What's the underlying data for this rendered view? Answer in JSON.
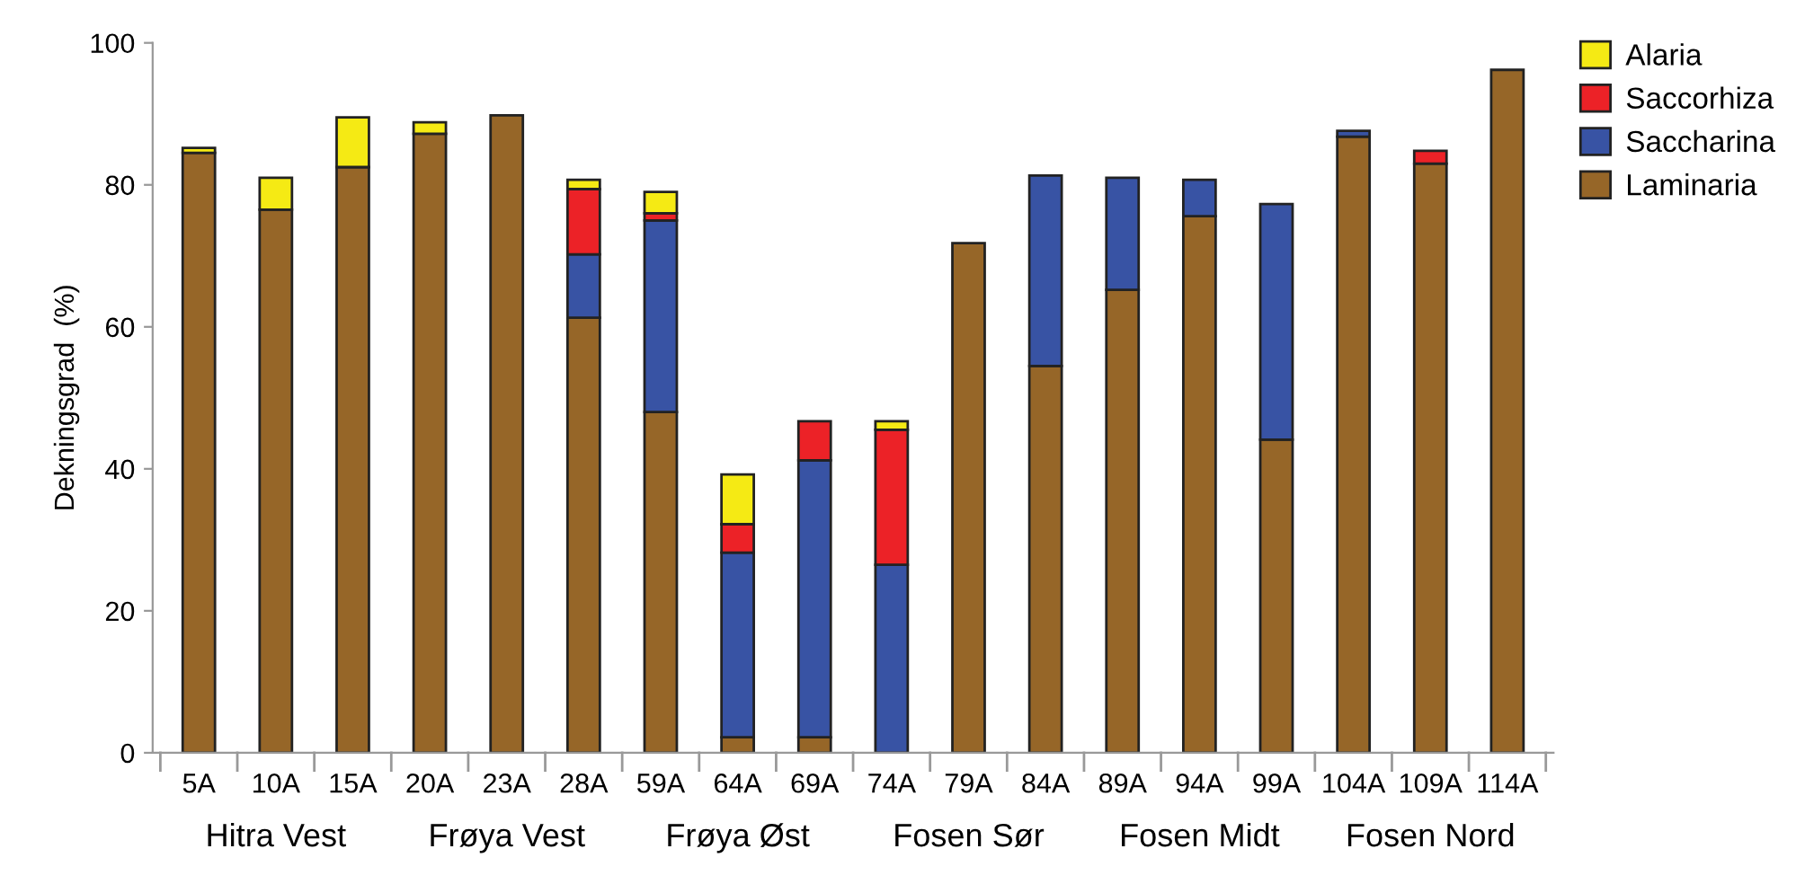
{
  "chart_data": {
    "type": "bar",
    "stacked": true,
    "ylabel": "Dekningsgrad  (%)",
    "categories": [
      "5A",
      "10A",
      "15A",
      "20A",
      "23A",
      "28A",
      "59A",
      "64A",
      "69A",
      "74A",
      "79A",
      "84A",
      "89A",
      "94A",
      "99A",
      "104A",
      "109A",
      "114A"
    ],
    "series": [
      {
        "name": "Laminaria",
        "color": "#966628",
        "values": [
          84.5,
          76.5,
          82.5,
          87.2,
          89.8,
          61.3,
          48,
          2.2,
          2.2,
          null,
          71.8,
          54.5,
          65.2,
          75.6,
          44.1,
          86.8,
          83,
          96.2
        ]
      },
      {
        "name": "Saccharina",
        "color": "#3853a4",
        "values": [
          null,
          null,
          null,
          null,
          null,
          8.9,
          27,
          26,
          39,
          26.5,
          null,
          26.8,
          15.8,
          5.1,
          33.2,
          0.8,
          null,
          null
        ]
      },
      {
        "name": "Saccorhiza",
        "color": "#ec2227",
        "values": [
          null,
          null,
          null,
          null,
          null,
          9.2,
          1,
          4,
          5.5,
          19,
          null,
          null,
          null,
          null,
          null,
          null,
          1.8,
          null
        ]
      },
      {
        "name": "Alaria",
        "color": "#f5ea14",
        "values": [
          0.7,
          4.5,
          7,
          1.6,
          null,
          1.3,
          3,
          7,
          null,
          1.2,
          null,
          null,
          null,
          null,
          null,
          null,
          null,
          null
        ]
      }
    ],
    "ylim": [
      0,
      100
    ],
    "yticks": [
      0,
      20,
      40,
      60,
      80,
      100
    ],
    "grid": false,
    "legend": "top right",
    "annotations": [
      "Hitra Vest",
      "Frøya Vest",
      "Frøya Øst",
      "Fosen Sør",
      "Fosen Midt",
      "Fosen Nord"
    ]
  }
}
